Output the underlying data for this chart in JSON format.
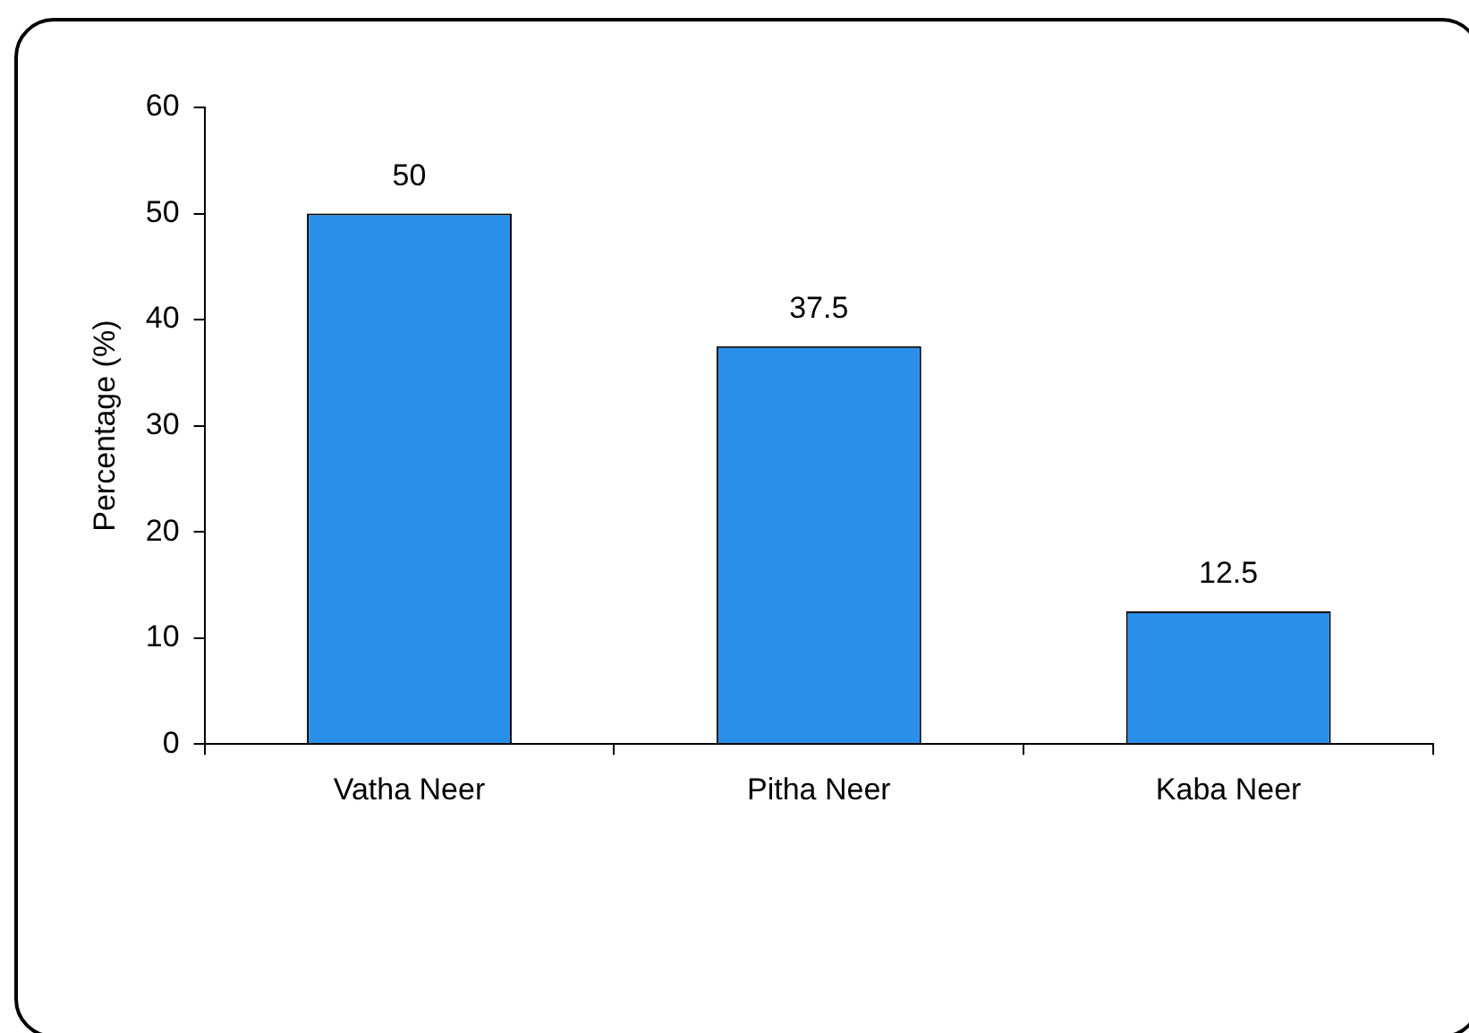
{
  "chart_data": {
    "type": "bar",
    "ylabel": "Percentage (%)",
    "categories": [
      "Vatha Neer",
      "Pitha Neer",
      "Kaba Neer"
    ],
    "values": [
      50,
      37.5,
      12.5
    ],
    "color": "#2a8fe8",
    "ylim": [
      0,
      60
    ],
    "yticks": [
      0,
      10,
      20,
      30,
      40,
      50,
      60
    ],
    "grid": false,
    "legend": false,
    "data_labels": true
  }
}
